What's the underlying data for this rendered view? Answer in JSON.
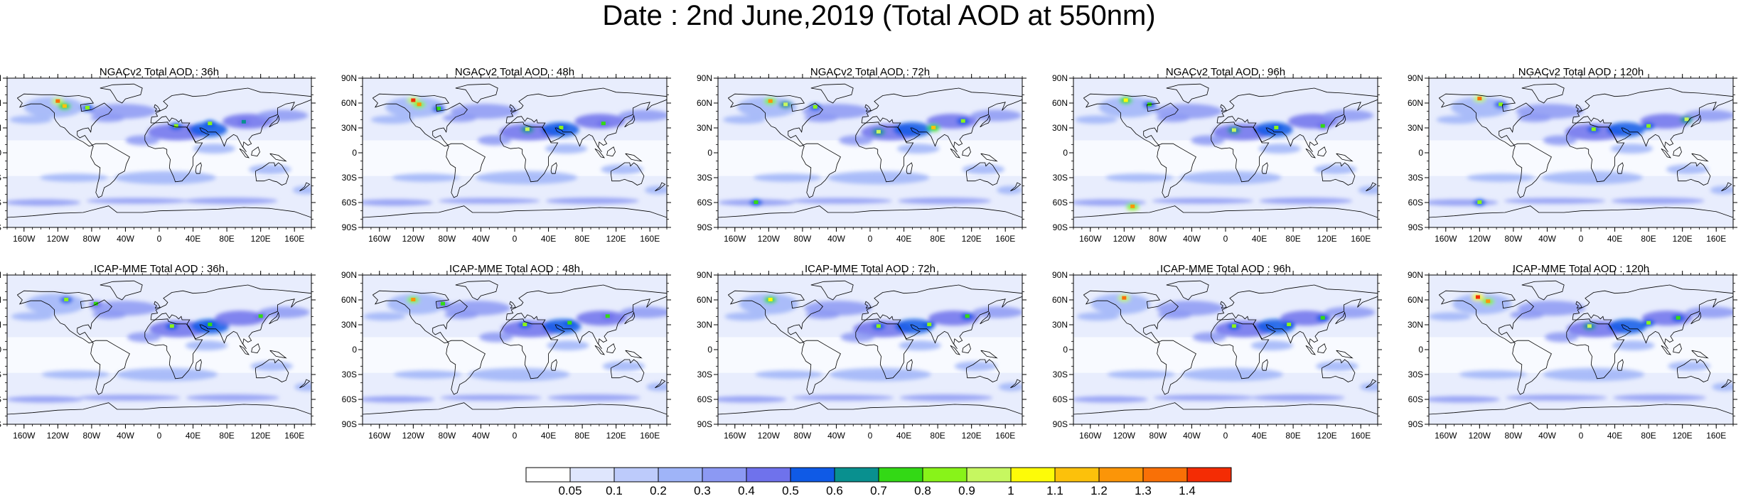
{
  "title": "Date : 2nd June,2019 (Total AOD at 550nm)",
  "panels": [
    {
      "title": "NGACv2 Total AOD : 36h",
      "model": "NGACv2",
      "forecast_hour": 36,
      "hotspots": [
        [
          -120,
          62,
          1.35
        ],
        [
          -112,
          56,
          1.1
        ],
        [
          -85,
          54,
          0.8
        ],
        [
          20,
          32,
          0.85
        ],
        [
          60,
          35,
          0.8
        ],
        [
          100,
          37,
          0.6
        ]
      ]
    },
    {
      "title": "NGACv2 Total AOD : 48h",
      "model": "NGACv2",
      "forecast_hour": 48,
      "hotspots": [
        [
          -120,
          63,
          1.4
        ],
        [
          -113,
          58,
          1.2
        ],
        [
          -90,
          53,
          0.75
        ],
        [
          15,
          28,
          0.9
        ],
        [
          55,
          30,
          0.85
        ],
        [
          105,
          35,
          0.7
        ]
      ]
    },
    {
      "title": "NGACv2 Total AOD : 72h",
      "model": "NGACv2",
      "forecast_hour": 72,
      "hotspots": [
        [
          -118,
          62,
          1.2
        ],
        [
          -100,
          58,
          0.9
        ],
        [
          -65,
          55,
          0.8
        ],
        [
          10,
          25,
          0.9
        ],
        [
          75,
          30,
          1.1
        ],
        [
          110,
          38,
          0.8
        ],
        [
          -135,
          -60,
          0.75
        ]
      ]
    },
    {
      "title": "NGACv2 Total AOD : 96h",
      "model": "NGACv2",
      "forecast_hour": 96,
      "hotspots": [
        [
          -118,
          63,
          1.0
        ],
        [
          -90,
          58,
          0.75
        ],
        [
          10,
          27,
          0.9
        ],
        [
          60,
          30,
          0.8
        ],
        [
          115,
          32,
          0.7
        ],
        [
          -110,
          -65,
          1.2
        ]
      ]
    },
    {
      "title": "NGACv2 Total AOD : 120h",
      "model": "NGACv2",
      "forecast_hour": 120,
      "hotspots": [
        [
          -120,
          65,
          1.35
        ],
        [
          -95,
          58,
          0.8
        ],
        [
          15,
          28,
          0.85
        ],
        [
          80,
          32,
          0.8
        ],
        [
          125,
          40,
          0.9
        ],
        [
          -120,
          -60,
          0.8
        ]
      ]
    },
    {
      "title": "ICAP-MME Total AOD : 36h",
      "model": "ICAP-MME",
      "forecast_hour": 36,
      "hotspots": [
        [
          -110,
          60,
          0.8
        ],
        [
          -75,
          55,
          0.7
        ],
        [
          15,
          28,
          0.8
        ],
        [
          60,
          30,
          0.75
        ],
        [
          120,
          40,
          0.7
        ]
      ]
    },
    {
      "title": "ICAP-MME Total AOD : 48h",
      "model": "ICAP-MME",
      "forecast_hour": 48,
      "hotspots": [
        [
          -120,
          60,
          1.2
        ],
        [
          -85,
          55,
          0.7
        ],
        [
          12,
          30,
          0.8
        ],
        [
          65,
          32,
          0.75
        ],
        [
          110,
          40,
          0.7
        ]
      ]
    },
    {
      "title": "ICAP-MME Total AOD : 72h",
      "model": "ICAP-MME",
      "forecast_hour": 72,
      "hotspots": [
        [
          -118,
          60,
          1.0
        ],
        [
          10,
          28,
          0.85
        ],
        [
          70,
          30,
          0.8
        ],
        [
          115,
          40,
          0.75
        ]
      ]
    },
    {
      "title": "ICAP-MME Total AOD : 96h",
      "model": "ICAP-MME",
      "forecast_hour": 96,
      "hotspots": [
        [
          -120,
          62,
          1.3
        ],
        [
          10,
          28,
          0.85
        ],
        [
          75,
          30,
          0.8
        ],
        [
          115,
          38,
          0.75
        ]
      ]
    },
    {
      "title": "ICAP-MME Total AOD : 120h",
      "model": "ICAP-MME",
      "forecast_hour": 120,
      "hotspots": [
        [
          -122,
          63,
          1.45
        ],
        [
          -110,
          58,
          1.25
        ],
        [
          10,
          28,
          0.9
        ],
        [
          80,
          32,
          0.8
        ],
        [
          115,
          38,
          0.75
        ]
      ]
    }
  ],
  "map": {
    "lon_range": [
      -180,
      180
    ],
    "lat_range": [
      -90,
      90
    ],
    "x_ticks": [
      "160W",
      "120W",
      "80W",
      "40W",
      "0",
      "40E",
      "80E",
      "120E",
      "160E"
    ],
    "x_tick_values": [
      -160,
      -120,
      -80,
      -40,
      0,
      40,
      80,
      120,
      160
    ],
    "y_ticks": [
      "90N",
      "60N",
      "30N",
      "0",
      "30S",
      "60S",
      "90S"
    ],
    "y_tick_values": [
      90,
      60,
      30,
      0,
      -30,
      -60,
      -90
    ]
  },
  "colorbar": {
    "labels": [
      "0.05",
      "0.1",
      "0.2",
      "0.3",
      "0.4",
      "0.5",
      "0.6",
      "0.7",
      "0.8",
      "0.9",
      "1",
      "1.1",
      "1.2",
      "1.3",
      "1.4"
    ],
    "colors": [
      "#ffffff",
      "#dfe6fd",
      "#bdcbfb",
      "#9fb4f8",
      "#8c99f3",
      "#6f72ec",
      "#0f5ae6",
      "#09908f",
      "#33d915",
      "#88f319",
      "#c6f760",
      "#fdfb08",
      "#fcc10b",
      "#fb9508",
      "#f97006",
      "#f42c04"
    ]
  }
}
